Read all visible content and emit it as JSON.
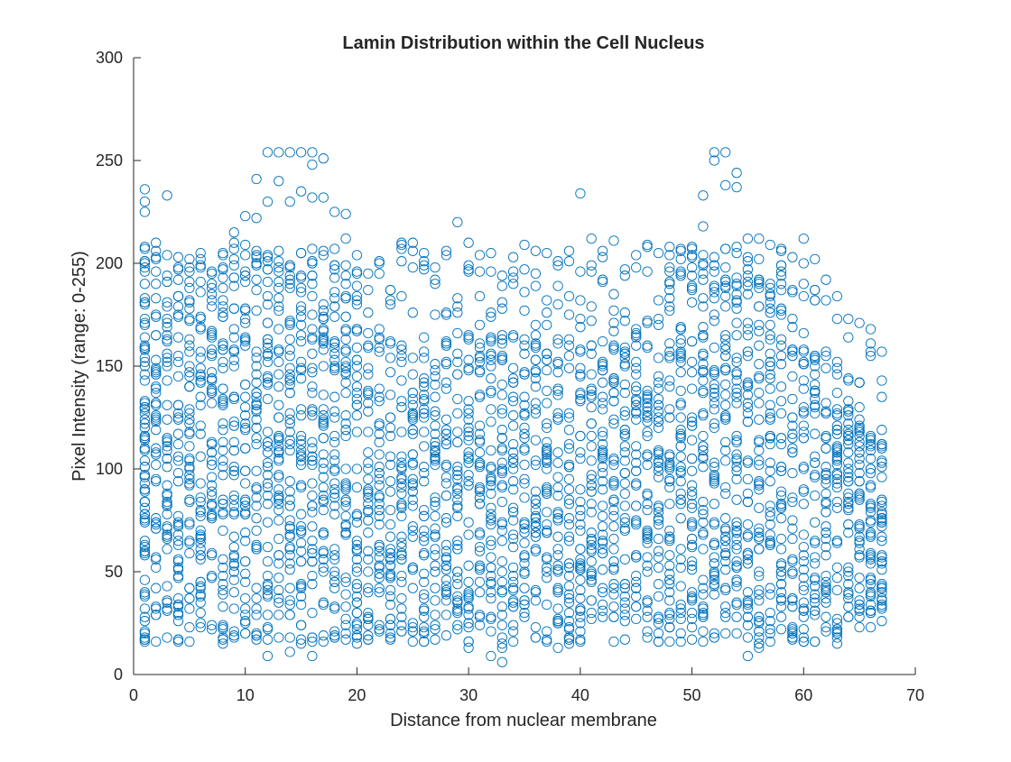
{
  "window": {
    "background": "#ffffff"
  },
  "chart_data": {
    "type": "scatter",
    "title": "Lamin Distribution within the Cell Nucleus",
    "xlabel": "Distance from nuclear membrane",
    "ylabel": "Pixel Intensity (range: 0-255)",
    "xlim": [
      0,
      70
    ],
    "ylim": [
      0,
      300
    ],
    "xticks": [
      0,
      10,
      20,
      30,
      40,
      50,
      60,
      70
    ],
    "yticks": [
      0,
      50,
      100,
      150,
      200,
      250,
      300
    ],
    "grid": false,
    "legend": "none",
    "marker": "open circle",
    "colors": {
      "marker": "#0072BD",
      "axis": "#262626"
    },
    "series": [
      {
        "values_note_x": "integer distances 1..67",
        "x_range": [
          1,
          67
        ],
        "y_range": [
          6,
          254
        ],
        "points": [
          [
            1,
            20
          ],
          [
            1,
            40
          ],
          [
            1,
            60
          ],
          [
            1,
            75
          ],
          [
            1,
            90
          ],
          [
            1,
            110
          ],
          [
            1,
            130
          ],
          [
            1,
            150
          ],
          [
            1,
            170
          ],
          [
            1,
            180
          ],
          [
            1,
            190
          ],
          [
            1,
            200
          ],
          [
            1,
            208
          ],
          [
            1,
            225
          ],
          [
            1,
            230
          ],
          [
            1,
            236
          ],
          [
            2,
            16
          ],
          [
            2,
            165
          ],
          [
            3,
            233
          ],
          [
            4,
            17
          ],
          [
            8,
            204
          ],
          [
            9,
            215
          ],
          [
            10,
            223
          ],
          [
            11,
            241
          ],
          [
            11,
            222
          ],
          [
            12,
            254
          ],
          [
            12,
            230
          ],
          [
            13,
            254
          ],
          [
            13,
            240
          ],
          [
            14,
            254
          ],
          [
            14,
            230
          ],
          [
            15,
            254
          ],
          [
            15,
            235
          ],
          [
            16,
            254
          ],
          [
            16,
            248
          ],
          [
            16,
            232
          ],
          [
            17,
            251
          ],
          [
            17,
            232
          ],
          [
            18,
            225
          ],
          [
            19,
            224
          ],
          [
            19,
            212
          ],
          [
            24,
            201
          ],
          [
            29,
            220
          ],
          [
            40,
            234
          ],
          [
            41,
            212
          ],
          [
            43,
            211
          ],
          [
            46,
            208
          ],
          [
            51,
            233
          ],
          [
            51,
            218
          ],
          [
            52,
            254
          ],
          [
            52,
            250
          ],
          [
            53,
            254
          ],
          [
            53,
            238
          ],
          [
            54,
            244
          ],
          [
            54,
            237
          ],
          [
            55,
            212
          ],
          [
            56,
            212
          ],
          [
            58,
            206
          ],
          [
            59,
            203
          ],
          [
            60,
            212
          ],
          [
            61,
            182
          ],
          [
            12,
            9
          ],
          [
            14,
            11
          ],
          [
            16,
            9
          ],
          [
            30,
            13
          ],
          [
            32,
            9
          ],
          [
            33,
            6
          ],
          [
            33,
            13
          ],
          [
            38,
            13
          ],
          [
            40,
            16
          ],
          [
            55,
            9
          ],
          [
            56,
            13
          ],
          [
            63,
            20
          ],
          [
            65,
            23
          ],
          [
            66,
            23
          ],
          [
            67,
            44
          ],
          [
            67,
            112
          ],
          [
            65,
            142
          ],
          [
            63,
            149
          ],
          [
            64,
            133
          ]
        ]
      }
    ]
  }
}
